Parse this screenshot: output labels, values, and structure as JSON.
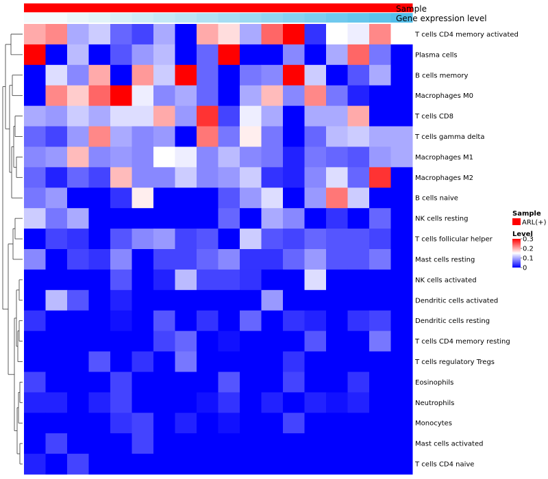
{
  "chart_data": {
    "type": "heatmap",
    "title": "",
    "annotations": {
      "sample_label": "Sample",
      "expression_label": "Gene expression level"
    },
    "rows": [
      "T cells CD4 memory activated",
      "Plasma cells",
      "B cells memory",
      "Macrophages M0",
      "T cells CD8",
      "T cells gamma delta",
      "Macrophages M1",
      "Macrophages M2",
      "B cells naive",
      "NK cells resting",
      "T cells follicular helper",
      "Mast cells resting",
      "NK cells activated",
      "Dendritic cells activated",
      "Dendritic cells resting",
      "T cells CD4 memory resting",
      "T cells regulatory  Tregs",
      "Eosinophils",
      "Neutrophils",
      "Monocytes",
      "Mast cells activated",
      "T cells CD4 naive"
    ],
    "n_columns": 18,
    "values": [
      [
        0.2,
        0.22,
        0.1,
        0.12,
        0.06,
        0.04,
        0.1,
        0.0,
        0.2,
        0.17,
        0.1,
        0.24,
        0.3,
        0.03,
        0.15,
        0.14,
        0.22,
        0.15
      ],
      [
        0.3,
        0.0,
        0.11,
        0.0,
        0.05,
        0.09,
        0.11,
        0.0,
        0.06,
        0.3,
        0.0,
        0.0,
        0.08,
        0.0,
        0.1,
        0.24,
        0.07,
        0.0
      ],
      [
        0.0,
        0.13,
        0.08,
        0.2,
        0.0,
        0.21,
        0.12,
        0.3,
        0.06,
        0.0,
        0.07,
        0.08,
        0.3,
        0.12,
        0.0,
        0.05,
        0.1,
        0.0
      ],
      [
        0.0,
        0.22,
        0.18,
        0.24,
        0.3,
        0.14,
        0.08,
        0.1,
        0.06,
        0.0,
        0.1,
        0.19,
        0.08,
        0.22,
        0.07,
        0.02,
        0.0,
        0.0
      ],
      [
        0.1,
        0.09,
        0.12,
        0.1,
        0.13,
        0.13,
        0.2,
        0.09,
        0.27,
        0.04,
        0.14,
        0.1,
        0.0,
        0.1,
        0.1,
        0.2,
        0.0,
        0.0
      ],
      [
        0.06,
        0.04,
        0.09,
        0.22,
        0.1,
        0.08,
        0.09,
        0.0,
        0.23,
        0.07,
        0.16,
        0.07,
        0.0,
        0.06,
        0.11,
        0.12,
        0.1,
        0.1
      ],
      [
        0.08,
        0.09,
        0.19,
        0.08,
        0.09,
        0.08,
        0.15,
        0.14,
        0.08,
        0.11,
        0.08,
        0.07,
        0.02,
        0.07,
        0.06,
        0.05,
        0.09,
        0.1
      ],
      [
        0.06,
        0.02,
        0.06,
        0.04,
        0.19,
        0.08,
        0.08,
        0.12,
        0.08,
        0.09,
        0.12,
        0.03,
        0.02,
        0.08,
        0.13,
        0.06,
        0.27,
        0.0
      ],
      [
        0.07,
        0.09,
        0.0,
        0.0,
        0.03,
        0.16,
        0.0,
        0.0,
        0.0,
        0.05,
        0.09,
        0.13,
        0.0,
        0.09,
        0.23,
        0.12,
        0.0,
        0.0
      ],
      [
        0.12,
        0.07,
        0.1,
        0.0,
        0.0,
        0.0,
        0.0,
        0.0,
        0.0,
        0.06,
        0.0,
        0.1,
        0.08,
        0.0,
        0.03,
        0.0,
        0.06,
        0.0
      ],
      [
        0.0,
        0.04,
        0.03,
        0.0,
        0.05,
        0.08,
        0.09,
        0.04,
        0.05,
        0.0,
        0.12,
        0.05,
        0.04,
        0.06,
        0.05,
        0.05,
        0.04,
        0.0
      ],
      [
        0.08,
        0.0,
        0.04,
        0.03,
        0.08,
        0.0,
        0.04,
        0.04,
        0.06,
        0.08,
        0.03,
        0.03,
        0.06,
        0.09,
        0.05,
        0.05,
        0.07,
        0.0
      ],
      [
        0.0,
        0.0,
        0.0,
        0.0,
        0.05,
        0.0,
        0.02,
        0.11,
        0.04,
        0.04,
        0.03,
        0.0,
        0.0,
        0.13,
        0.0,
        0.0,
        0.0,
        0.0
      ],
      [
        0.0,
        0.11,
        0.05,
        0.0,
        0.02,
        0.0,
        0.0,
        0.0,
        0.0,
        0.0,
        0.0,
        0.09,
        0.0,
        0.0,
        0.0,
        0.0,
        0.0,
        0.0
      ],
      [
        0.03,
        0.0,
        0.0,
        0.0,
        0.01,
        0.0,
        0.05,
        0.0,
        0.03,
        0.0,
        0.06,
        0.0,
        0.03,
        0.02,
        0.0,
        0.03,
        0.04,
        0.0
      ],
      [
        0.0,
        0.0,
        0.0,
        0.0,
        0.0,
        0.0,
        0.04,
        0.06,
        0.0,
        0.01,
        0.0,
        0.0,
        0.0,
        0.05,
        0.0,
        0.0,
        0.07,
        0.0
      ],
      [
        0.0,
        0.0,
        0.0,
        0.05,
        0.0,
        0.03,
        0.0,
        0.07,
        0.0,
        0.0,
        0.0,
        0.0,
        0.03,
        0.0,
        0.0,
        0.0,
        0.0,
        0.0
      ],
      [
        0.04,
        0.0,
        0.0,
        0.0,
        0.04,
        0.0,
        0.0,
        0.0,
        0.0,
        0.05,
        0.0,
        0.0,
        0.04,
        0.0,
        0.0,
        0.03,
        0.0,
        0.0
      ],
      [
        0.02,
        0.02,
        0.0,
        0.02,
        0.04,
        0.0,
        0.0,
        0.0,
        0.01,
        0.03,
        0.0,
        0.02,
        0.0,
        0.02,
        0.01,
        0.02,
        0.0,
        0.0
      ],
      [
        0.0,
        0.0,
        0.0,
        0.0,
        0.03,
        0.04,
        0.0,
        0.02,
        0.0,
        0.01,
        0.0,
        0.0,
        0.04,
        0.0,
        0.0,
        0.0,
        0.0,
        0.0
      ],
      [
        0.0,
        0.04,
        0.0,
        0.0,
        0.0,
        0.04,
        0.0,
        0.0,
        0.0,
        0.0,
        0.0,
        0.0,
        0.0,
        0.0,
        0.0,
        0.0,
        0.0,
        0.0
      ],
      [
        0.02,
        0.0,
        0.04,
        0.0,
        0.0,
        0.0,
        0.0,
        0.0,
        0.0,
        0.0,
        0.0,
        0.0,
        0.0,
        0.0,
        0.0,
        0.0,
        0.0,
        0.0
      ]
    ],
    "color_scale": {
      "min": 0,
      "mid": 0.15,
      "max": 0.3,
      "low_color": "#0000ff",
      "mid_color": "#ffffff",
      "high_color": "#ff0000"
    },
    "expression_gradient": [
      "#f5fbfd",
      "#f5fbfd",
      "#eaf6fa",
      "#e2f3f9",
      "#d8eff8",
      "#ceecf7",
      "#c4e8f6",
      "#bbe4f5",
      "#b0e1f4",
      "#a6ddf3",
      "#9cd9f2",
      "#91d5f1",
      "#86d1f0",
      "#7ccdef",
      "#70c9ee",
      "#66c6ec",
      "#5cc2eb",
      "#52beea"
    ],
    "sample_color": "#ff0000",
    "legend": {
      "sample_title": "Sample",
      "sample_entry": "ARL(+)",
      "level_title": "Level",
      "level_ticks": [
        "0.3",
        "0.2",
        "0.1",
        "0"
      ],
      "level_tick_values": [
        0.3,
        0.2,
        0.1,
        0
      ]
    }
  }
}
